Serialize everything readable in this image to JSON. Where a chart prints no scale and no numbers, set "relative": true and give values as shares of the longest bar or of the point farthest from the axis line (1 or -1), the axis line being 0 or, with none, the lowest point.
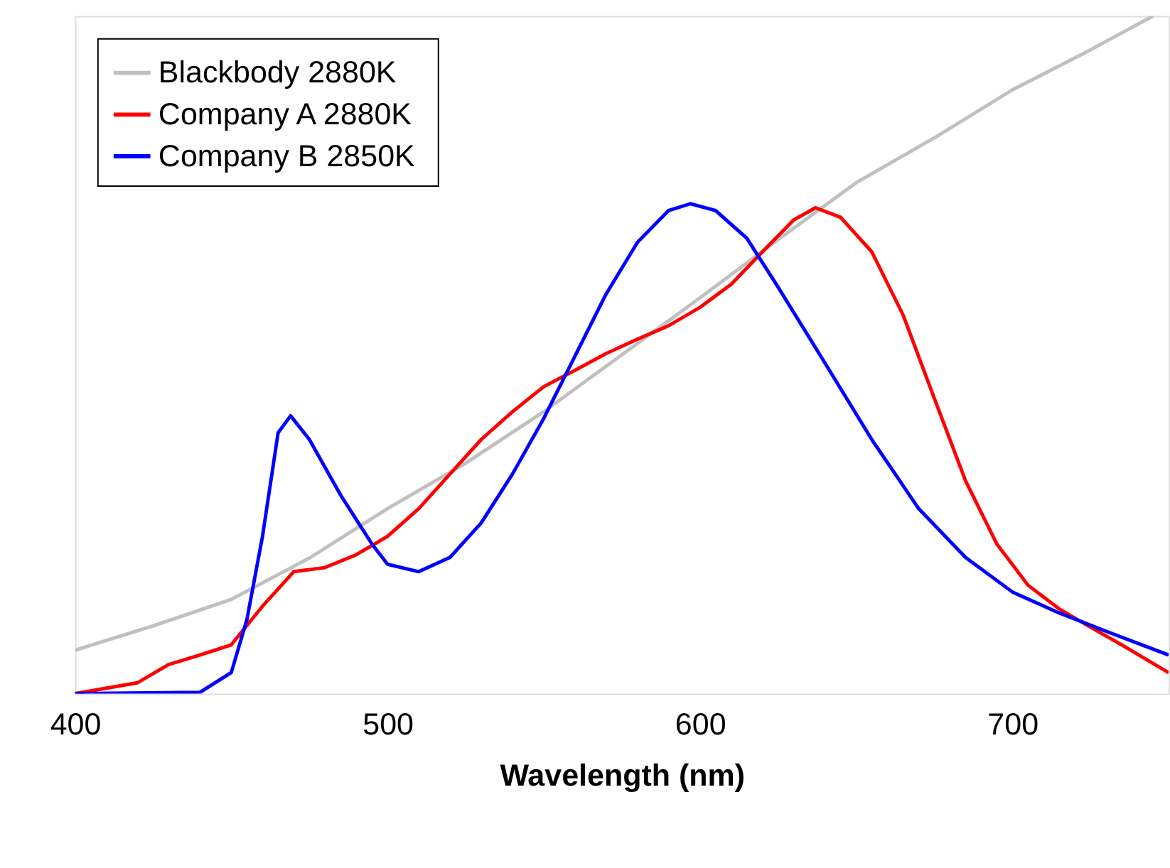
{
  "chart_data": {
    "type": "line",
    "xlabel": "Wavelength (nm)",
    "relative": true,
    "xlim": [
      400,
      750
    ],
    "xticks": [
      400,
      500,
      600,
      700
    ],
    "grid": false,
    "legend": "top left",
    "marker": "none",
    "line_style": "solid",
    "series": [
      {
        "name": "Blackbody    2880K",
        "color": "#c0c0c0",
        "x": [
          400,
          425,
          450,
          475,
          500,
          525,
          550,
          575,
          600,
          625,
          650,
          675,
          700,
          725,
          745
        ],
        "values": [
          0.064,
          0.1,
          0.139,
          0.2,
          0.273,
          0.34,
          0.416,
          0.5,
          0.584,
          0.67,
          0.754,
          0.82,
          0.891,
          0.95,
          1.0
        ]
      },
      {
        "name": "Company A  2880K",
        "color": "#ff0000",
        "x": [
          400,
          420,
          430,
          440,
          450,
          460,
          470,
          480,
          490,
          500,
          510,
          520,
          530,
          540,
          550,
          560,
          570,
          580,
          590,
          600,
          610,
          620,
          630,
          637,
          645,
          655,
          665,
          675,
          685,
          695,
          705,
          715,
          725,
          735,
          750
        ],
        "values": [
          0,
          0.016,
          0.043,
          0.057,
          0.072,
          0.129,
          0.18,
          0.186,
          0.205,
          0.232,
          0.273,
          0.324,
          0.375,
          0.416,
          0.453,
          0.477,
          0.502,
          0.523,
          0.543,
          0.57,
          0.604,
          0.652,
          0.699,
          0.717,
          0.703,
          0.652,
          0.559,
          0.436,
          0.314,
          0.221,
          0.16,
          0.125,
          0.098,
          0.072,
          0.031
        ]
      },
      {
        "name": "Company B  2850K",
        "color": "#0000ff",
        "x": [
          400,
          440,
          450,
          455,
          460,
          465,
          469,
          475,
          485,
          495,
          500,
          510,
          520,
          530,
          540,
          550,
          560,
          570,
          580,
          590,
          597,
          605,
          615,
          625,
          640,
          655,
          670,
          685,
          700,
          715,
          730,
          750
        ],
        "values": [
          0,
          0.002,
          0.031,
          0.109,
          0.232,
          0.385,
          0.41,
          0.375,
          0.293,
          0.221,
          0.191,
          0.18,
          0.201,
          0.252,
          0.324,
          0.406,
          0.498,
          0.59,
          0.666,
          0.713,
          0.723,
          0.713,
          0.672,
          0.6,
          0.488,
          0.375,
          0.273,
          0.201,
          0.15,
          0.119,
          0.092,
          0.057
        ]
      }
    ]
  }
}
